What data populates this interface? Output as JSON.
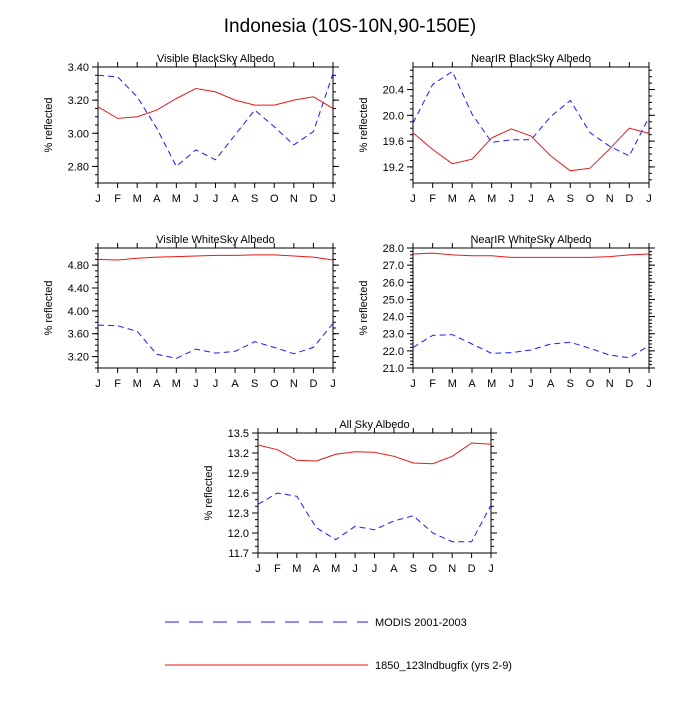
{
  "figure": {
    "title": "Indonesia (10S-10N,90-150E)",
    "colors": {
      "modis": "#1a1aff",
      "model": "#e61a1a"
    }
  },
  "legend": [
    {
      "label": "MODIS 2001-2003",
      "style": "dashed",
      "color": "#1a1aff"
    },
    {
      "label": "1850_123lndbugfix (yrs 2-9)",
      "style": "solid",
      "color": "#e61a1a"
    }
  ],
  "chart_data": [
    {
      "type": "line",
      "title": "Visible BlackSky Albedo",
      "ylabel": "% reflected",
      "categories": [
        "J",
        "F",
        "M",
        "A",
        "M",
        "J",
        "J",
        "A",
        "S",
        "O",
        "N",
        "D",
        "J"
      ],
      "ylim": [
        2.7,
        3.4
      ],
      "yticks": [
        2.8,
        3.0,
        3.2,
        3.4
      ],
      "ytick_labels": [
        "2.80",
        "3.00",
        "3.20",
        "3.40"
      ],
      "yminor": 0.05,
      "series": [
        {
          "name": "MODIS 2001-2003",
          "style": "dashed",
          "values": [
            3.35,
            3.34,
            3.22,
            3.03,
            2.8,
            2.9,
            2.84,
            2.99,
            3.14,
            3.04,
            2.93,
            3.01,
            3.36
          ]
        },
        {
          "name": "1850_123lndbugfix (yrs 2-9)",
          "style": "solid",
          "values": [
            3.16,
            3.09,
            3.1,
            3.14,
            3.21,
            3.27,
            3.25,
            3.2,
            3.17,
            3.17,
            3.2,
            3.22,
            3.15
          ]
        }
      ]
    },
    {
      "type": "line",
      "title": "NearIR BlackSky Albedo",
      "ylabel": "% reflected",
      "categories": [
        "J",
        "F",
        "M",
        "A",
        "M",
        "J",
        "J",
        "A",
        "S",
        "O",
        "N",
        "D",
        "J"
      ],
      "ylim": [
        18.95,
        20.75
      ],
      "yticks": [
        19.2,
        19.6,
        20.0,
        20.4
      ],
      "ytick_labels": [
        "19.2",
        "19.6",
        "20.0",
        "20.4"
      ],
      "yminor": 0.1,
      "series": [
        {
          "name": "MODIS 2001-2003",
          "style": "dashed",
          "values": [
            19.88,
            20.48,
            20.68,
            20.02,
            19.58,
            19.62,
            19.62,
            19.98,
            20.23,
            19.73,
            19.52,
            19.37,
            19.97
          ]
        },
        {
          "name": "1850_123lndbugfix (yrs 2-9)",
          "style": "solid",
          "values": [
            19.73,
            19.47,
            19.25,
            19.32,
            19.65,
            19.79,
            19.68,
            19.37,
            19.14,
            19.18,
            19.48,
            19.8,
            19.72
          ]
        }
      ]
    },
    {
      "type": "line",
      "title": "Visible WhiteSky Albedo",
      "ylabel": "% reflected",
      "categories": [
        "J",
        "F",
        "M",
        "A",
        "M",
        "J",
        "J",
        "A",
        "S",
        "O",
        "N",
        "D",
        "J"
      ],
      "ylim": [
        3.0,
        5.1
      ],
      "yticks": [
        3.2,
        3.6,
        4.0,
        4.4,
        4.8
      ],
      "ytick_labels": [
        "3.20",
        "3.60",
        "4.00",
        "4.40",
        "4.80"
      ],
      "yminor": 0.1,
      "series": [
        {
          "name": "MODIS 2001-2003",
          "style": "dashed",
          "values": [
            3.75,
            3.74,
            3.64,
            3.24,
            3.17,
            3.33,
            3.26,
            3.29,
            3.46,
            3.36,
            3.25,
            3.36,
            3.78
          ]
        },
        {
          "name": "1850_123lndbugfix (yrs 2-9)",
          "style": "solid",
          "values": [
            4.9,
            4.89,
            4.92,
            4.94,
            4.95,
            4.96,
            4.97,
            4.97,
            4.98,
            4.98,
            4.96,
            4.94,
            4.89
          ]
        }
      ]
    },
    {
      "type": "line",
      "title": "NearIR WhiteSky Albedo",
      "ylabel": "% reflected",
      "categories": [
        "J",
        "F",
        "M",
        "A",
        "M",
        "J",
        "J",
        "A",
        "S",
        "O",
        "N",
        "D",
        "J"
      ],
      "ylim": [
        21.0,
        28.0
      ],
      "yticks": [
        21.0,
        22.0,
        23.0,
        24.0,
        25.0,
        26.0,
        27.0,
        28.0
      ],
      "ytick_labels": [
        "21.0",
        "22.0",
        "23.0",
        "24.0",
        "25.0",
        "26.0",
        "27.0",
        "28.0"
      ],
      "yminor": 0.2,
      "series": [
        {
          "name": "MODIS 2001-2003",
          "style": "dashed",
          "values": [
            22.2,
            22.9,
            22.95,
            22.4,
            21.85,
            21.9,
            22.05,
            22.4,
            22.5,
            22.15,
            21.75,
            21.6,
            22.3
          ]
        },
        {
          "name": "1850_123lndbugfix (yrs 2-9)",
          "style": "solid",
          "values": [
            27.65,
            27.7,
            27.6,
            27.55,
            27.55,
            27.45,
            27.45,
            27.45,
            27.45,
            27.45,
            27.5,
            27.6,
            27.65
          ]
        }
      ]
    },
    {
      "type": "line",
      "title": "All Sky Albedo",
      "ylabel": "% reflected",
      "categories": [
        "J",
        "F",
        "M",
        "A",
        "M",
        "J",
        "J",
        "A",
        "S",
        "O",
        "N",
        "D",
        "J"
      ],
      "ylim": [
        11.7,
        13.5
      ],
      "yticks": [
        11.7,
        12.0,
        12.3,
        12.6,
        12.9,
        13.2,
        13.5
      ],
      "ytick_labels": [
        "11.7",
        "12.0",
        "12.3",
        "12.6",
        "12.9",
        "13.2",
        "13.5"
      ],
      "yminor": 0.1,
      "series": [
        {
          "name": "MODIS 2001-2003",
          "style": "dashed",
          "values": [
            12.43,
            12.6,
            12.55,
            12.08,
            11.9,
            12.1,
            12.05,
            12.18,
            12.26,
            12.0,
            11.87,
            11.87,
            12.42
          ]
        },
        {
          "name": "1850_123lndbugfix (yrs 2-9)",
          "style": "solid",
          "values": [
            13.32,
            13.25,
            13.09,
            13.08,
            13.18,
            13.22,
            13.21,
            13.15,
            13.05,
            13.04,
            13.15,
            13.35,
            13.33
          ]
        }
      ]
    }
  ]
}
